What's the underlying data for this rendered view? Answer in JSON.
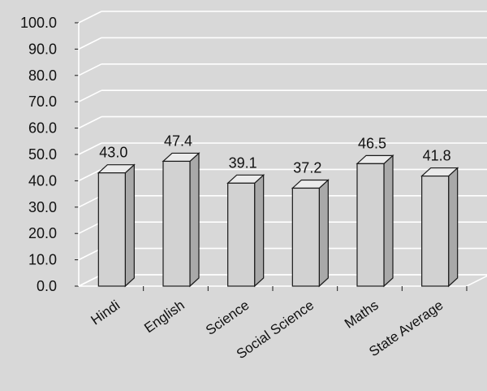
{
  "chart_data": {
    "type": "bar",
    "title": "",
    "xlabel": "",
    "ylabel": "",
    "categories": [
      "Hindi",
      "English",
      "Science",
      "Social Science",
      "Maths",
      "State Average"
    ],
    "values": [
      43.0,
      47.4,
      39.1,
      37.2,
      46.5,
      41.8
    ],
    "data_labels": [
      "43.0",
      "47.4",
      "39.1",
      "37.2",
      "46.5",
      "41.8"
    ],
    "y_ticks": [
      "0.0",
      "10.0",
      "20.0",
      "30.0",
      "40.0",
      "50.0",
      "60.0",
      "70.0",
      "80.0",
      "90.0",
      "100.0"
    ],
    "ylim": [
      0,
      100
    ],
    "grid": true,
    "legend": "none",
    "style": "3d-bar",
    "colors": {
      "bar_front": "#d2d2d2",
      "bar_side": "#a9a9a9",
      "bar_top": "#ebebeb",
      "background": "#d8d8d8",
      "gridline": "#ffffff",
      "outline": "#1a1a1a"
    }
  }
}
